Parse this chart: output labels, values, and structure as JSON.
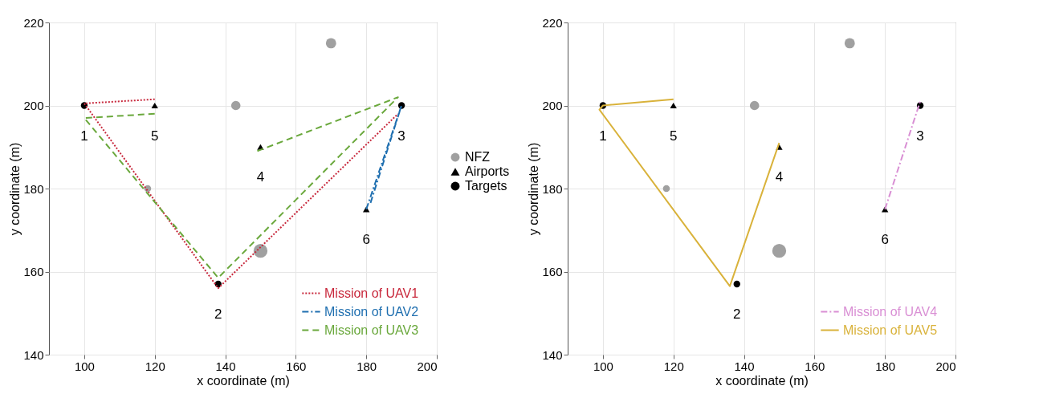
{
  "chart_data": [
    {
      "type": "scatter",
      "xlabel": "x coordinate (m)",
      "ylabel": "y coordinate (m)",
      "xlim": [
        90,
        200
      ],
      "ylim": [
        140,
        220
      ],
      "xticks": [
        100,
        120,
        140,
        160,
        180,
        200
      ],
      "yticks": [
        140,
        160,
        180,
        200,
        220
      ],
      "grid": true,
      "legend": "bottom right",
      "series": [
        {
          "name": "NFZ",
          "type": "bubble",
          "color": "#a0a0a0",
          "x": [
            170,
            143,
            118,
            150
          ],
          "values": [
            215,
            200,
            180,
            165
          ],
          "sizes": [
            0.55,
            0.45,
            0.25,
            1
          ]
        },
        {
          "name": "Airports",
          "type": "scatter",
          "marker": "triangle",
          "color": "#000000",
          "x": [
            150,
            120,
            180
          ],
          "values": [
            190,
            200,
            175
          ]
        },
        {
          "name": "Targets",
          "type": "scatter",
          "marker": "circle",
          "color": "#000000",
          "x": [
            100,
            138,
            190
          ],
          "values": [
            200,
            157,
            200
          ]
        },
        {
          "name": "Mission of UAV1",
          "type": "line",
          "line_style": "dotted",
          "color": "#c8283c",
          "x": [
            120,
            100,
            138,
            189
          ],
          "values": [
            201.5,
            200.5,
            156,
            198
          ]
        },
        {
          "name": "Mission of UAV2",
          "type": "line",
          "line_style": "dashdot",
          "color": "#1f6fb0",
          "x": [
            180,
            190,
            181
          ],
          "values": [
            175,
            200,
            176
          ]
        },
        {
          "name": "Mission of UAV3",
          "type": "line",
          "line_style": "dashed",
          "color": "#6aa83c",
          "x": [
            120,
            100,
            138,
            189,
            149
          ],
          "values": [
            198,
            197,
            158.5,
            202,
            189
          ]
        }
      ],
      "annotations": [
        {
          "text": "1",
          "x": 100,
          "y": 200
        },
        {
          "text": "2",
          "x": 138,
          "y": 157
        },
        {
          "text": "3",
          "x": 190,
          "y": 200
        },
        {
          "text": "4",
          "x": 150,
          "y": 190
        },
        {
          "text": "5",
          "x": 120,
          "y": 200
        },
        {
          "text": "6",
          "x": 180,
          "y": 175
        }
      ]
    },
    {
      "type": "scatter",
      "xlabel": "x coordinate (m)",
      "ylabel": "y coordinate (m)",
      "xlim": [
        90,
        200
      ],
      "ylim": [
        140,
        220
      ],
      "xticks": [
        100,
        120,
        140,
        160,
        180,
        200
      ],
      "yticks": [
        140,
        160,
        180,
        200,
        220
      ],
      "grid": true,
      "legend": "bottom right",
      "series": [
        {
          "type": "bubble",
          "color": "#a0a0a0",
          "x": [
            170,
            143,
            118,
            150
          ],
          "values": [
            215,
            200,
            180,
            165
          ],
          "sizes": [
            0.55,
            0.45,
            0.25,
            1
          ]
        },
        {
          "type": "scatter",
          "marker": "triangle",
          "color": "#000000",
          "x": [
            150,
            120,
            180
          ],
          "values": [
            190,
            200,
            175
          ]
        },
        {
          "type": "scatter",
          "marker": "circle",
          "color": "#000000",
          "x": [
            100,
            138,
            190
          ],
          "values": [
            200,
            157,
            200
          ]
        },
        {
          "name": "Mission of UAV4",
          "type": "line",
          "line_style": "dashdot",
          "color": "#d98fd4",
          "x": [
            180,
            190
          ],
          "values": [
            175,
            201
          ]
        },
        {
          "name": "Mission of UAV5",
          "type": "line",
          "line_style": "solid",
          "color": "#d9b23a",
          "x": [
            120,
            100,
            99,
            136,
            150
          ],
          "values": [
            201.5,
            200,
            199,
            156.5,
            191
          ]
        }
      ],
      "annotations": [
        {
          "text": "1",
          "x": 100,
          "y": 200
        },
        {
          "text": "2",
          "x": 138,
          "y": 157
        },
        {
          "text": "3",
          "x": 190,
          "y": 200
        },
        {
          "text": "4",
          "x": 150,
          "y": 190
        },
        {
          "text": "5",
          "x": 120,
          "y": 200
        },
        {
          "text": "6",
          "x": 180,
          "y": 175
        }
      ]
    }
  ]
}
